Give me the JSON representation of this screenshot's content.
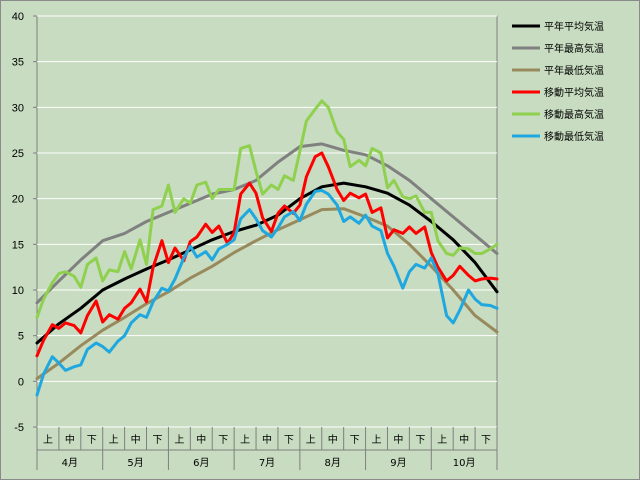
{
  "chart_data": {
    "type": "line",
    "ylim": [
      -5,
      40
    ],
    "yticks": [
      -5,
      0,
      5,
      10,
      15,
      20,
      25,
      30,
      35,
      40
    ],
    "grid": true,
    "legend_position": "right",
    "x_dekad_labels": [
      "上",
      "中",
      "下",
      "上",
      "中",
      "下",
      "上",
      "中",
      "下",
      "上",
      "中",
      "下",
      "上",
      "中",
      "下",
      "上",
      "中",
      "下",
      "上",
      "中",
      "下"
    ],
    "x_month_labels": [
      "4月",
      "5月",
      "6月",
      "7月",
      "8月",
      "9月",
      "10月"
    ],
    "x_range": [
      0,
      21
    ],
    "series": [
      {
        "name": "平年平均気温",
        "color": "#000000",
        "x": [
          0,
          1,
          2,
          3,
          4,
          5,
          6,
          7,
          8,
          9,
          10,
          11,
          12,
          13,
          14,
          15,
          16,
          17,
          18,
          19,
          20,
          21
        ],
        "y": [
          4.2,
          6.3,
          8.0,
          10.0,
          11.2,
          12.3,
          13.3,
          14.4,
          15.5,
          16.4,
          17.1,
          18.2,
          20.0,
          21.3,
          21.7,
          21.3,
          20.6,
          19.3,
          17.5,
          15.5,
          13.0,
          9.8
        ]
      },
      {
        "name": "平年最高気温",
        "color": "#808080",
        "x": [
          0,
          1,
          2,
          3,
          4,
          5,
          6,
          7,
          8,
          9,
          10,
          11,
          12,
          13,
          14,
          15,
          16,
          17,
          18,
          19,
          20,
          21
        ],
        "y": [
          8.6,
          11.0,
          13.3,
          15.4,
          16.2,
          17.5,
          18.5,
          19.5,
          20.5,
          21.0,
          22.0,
          24.0,
          25.7,
          26.0,
          25.3,
          24.8,
          23.6,
          22.0,
          20.0,
          18.0,
          16.0,
          14.0
        ]
      },
      {
        "name": "平年最低気温",
        "color": "#998a5e",
        "x": [
          0,
          1,
          2,
          3,
          4,
          5,
          6,
          7,
          8,
          9,
          10,
          11,
          12,
          13,
          14,
          15,
          16,
          17,
          18,
          19,
          20,
          21
        ],
        "y": [
          0.3,
          2.0,
          3.9,
          5.6,
          7.0,
          8.5,
          9.8,
          11.3,
          12.6,
          14.1,
          15.4,
          16.6,
          17.7,
          18.8,
          18.9,
          18.0,
          17.0,
          15.0,
          12.6,
          10.0,
          7.2,
          5.4
        ]
      },
      {
        "name": "移動平均気温",
        "color": "#ff0000",
        "x": [
          0,
          0.3,
          0.7,
          1,
          1.3,
          1.7,
          2,
          2.3,
          2.7,
          3,
          3.3,
          3.7,
          4,
          4.3,
          4.7,
          5,
          5.3,
          5.7,
          6,
          6.3,
          6.7,
          7,
          7.3,
          7.7,
          8,
          8.3,
          8.7,
          9,
          9.3,
          9.7,
          10,
          10.3,
          10.7,
          11,
          11.3,
          11.7,
          12,
          12.3,
          12.7,
          13,
          13.3,
          13.7,
          14,
          14.3,
          14.7,
          15,
          15.3,
          15.7,
          16,
          16.3,
          16.7,
          17,
          17.3,
          17.7,
          18,
          18.3,
          18.7,
          19,
          19.3,
          19.7,
          20,
          20.3,
          20.7,
          21
        ],
        "y": [
          2.8,
          4.5,
          6.2,
          5.8,
          6.4,
          6.1,
          5.3,
          7.2,
          8.8,
          6.5,
          7.3,
          6.8,
          8.0,
          8.6,
          10.1,
          8.7,
          12.5,
          15.4,
          13.0,
          14.6,
          13.2,
          15.3,
          15.8,
          17.2,
          16.3,
          17.0,
          15.1,
          16.3,
          20.5,
          21.7,
          20.6,
          17.9,
          16.4,
          18.4,
          19.2,
          18.4,
          19.3,
          22.4,
          24.6,
          25.0,
          23.5,
          21.0,
          19.8,
          20.6,
          20.1,
          20.5,
          18.5,
          19.0,
          15.7,
          16.6,
          16.2,
          16.9,
          16.2,
          16.9,
          14.1,
          12.5,
          11.0,
          11.6,
          12.6,
          11.6,
          11.0,
          11.2,
          11.3,
          11.2
        ]
      },
      {
        "name": "移動最高気温",
        "color": "#8fd14f",
        "x": [
          0,
          0.3,
          0.7,
          1,
          1.3,
          1.7,
          2,
          2.3,
          2.7,
          3,
          3.3,
          3.7,
          4,
          4.3,
          4.7,
          5,
          5.3,
          5.7,
          6,
          6.3,
          6.7,
          7,
          7.3,
          7.7,
          8,
          8.3,
          8.7,
          9,
          9.3,
          9.7,
          10,
          10.3,
          10.7,
          11,
          11.3,
          11.7,
          12,
          12.3,
          12.7,
          13,
          13.3,
          13.7,
          14,
          14.3,
          14.7,
          15,
          15.3,
          15.7,
          16,
          16.3,
          16.7,
          17,
          17.3,
          17.7,
          18,
          18.3,
          18.7,
          19,
          19.3,
          19.7,
          20,
          20.3,
          20.7,
          21
        ],
        "y": [
          7.0,
          9.0,
          10.8,
          11.8,
          12.0,
          11.5,
          10.3,
          12.8,
          13.5,
          11.0,
          12.2,
          12.0,
          14.2,
          12.3,
          15.5,
          12.8,
          18.8,
          19.2,
          21.5,
          18.5,
          20.0,
          19.5,
          21.5,
          21.8,
          20.0,
          21.0,
          21.0,
          21.0,
          25.5,
          25.8,
          23.0,
          20.5,
          21.5,
          21.0,
          22.5,
          22.0,
          25.2,
          28.5,
          29.8,
          30.7,
          30.0,
          27.3,
          26.5,
          23.5,
          24.2,
          23.6,
          25.5,
          25.0,
          21.2,
          22.0,
          20.2,
          20.0,
          20.3,
          18.5,
          18.5,
          15.4,
          14.0,
          13.8,
          14.6,
          14.5,
          14.0,
          14.0,
          14.5,
          15.0
        ]
      },
      {
        "name": "移動最低気温",
        "color": "#1fa8e0",
        "x": [
          0,
          0.3,
          0.7,
          1,
          1.3,
          1.7,
          2,
          2.3,
          2.7,
          3,
          3.3,
          3.7,
          4,
          4.3,
          4.7,
          5,
          5.3,
          5.7,
          6,
          6.3,
          6.7,
          7,
          7.3,
          7.7,
          8,
          8.3,
          8.7,
          9,
          9.3,
          9.7,
          10,
          10.3,
          10.7,
          11,
          11.3,
          11.7,
          12,
          12.3,
          12.7,
          13,
          13.3,
          13.7,
          14,
          14.3,
          14.7,
          15,
          15.3,
          15.7,
          16,
          16.3,
          16.7,
          17,
          17.3,
          17.7,
          18,
          18.3,
          18.7,
          19,
          19.3,
          19.7,
          20,
          20.3,
          20.7,
          21
        ],
        "y": [
          -1.5,
          0.8,
          2.7,
          2.0,
          1.2,
          1.6,
          1.8,
          3.5,
          4.2,
          3.8,
          3.2,
          4.4,
          5.0,
          6.4,
          7.3,
          7.0,
          8.7,
          10.2,
          9.9,
          11.2,
          13.5,
          14.8,
          13.6,
          14.2,
          13.3,
          14.5,
          15.0,
          15.5,
          17.8,
          18.8,
          17.8,
          16.5,
          15.8,
          16.8,
          18.0,
          18.6,
          17.6,
          19.4,
          20.8,
          20.9,
          20.5,
          19.3,
          17.5,
          18.0,
          17.3,
          18.2,
          17.0,
          16.5,
          14.0,
          12.6,
          10.2,
          12.0,
          12.8,
          12.4,
          13.5,
          11.8,
          7.2,
          6.4,
          7.8,
          10.0,
          9.0,
          8.4,
          8.3,
          8.0
        ]
      }
    ]
  }
}
